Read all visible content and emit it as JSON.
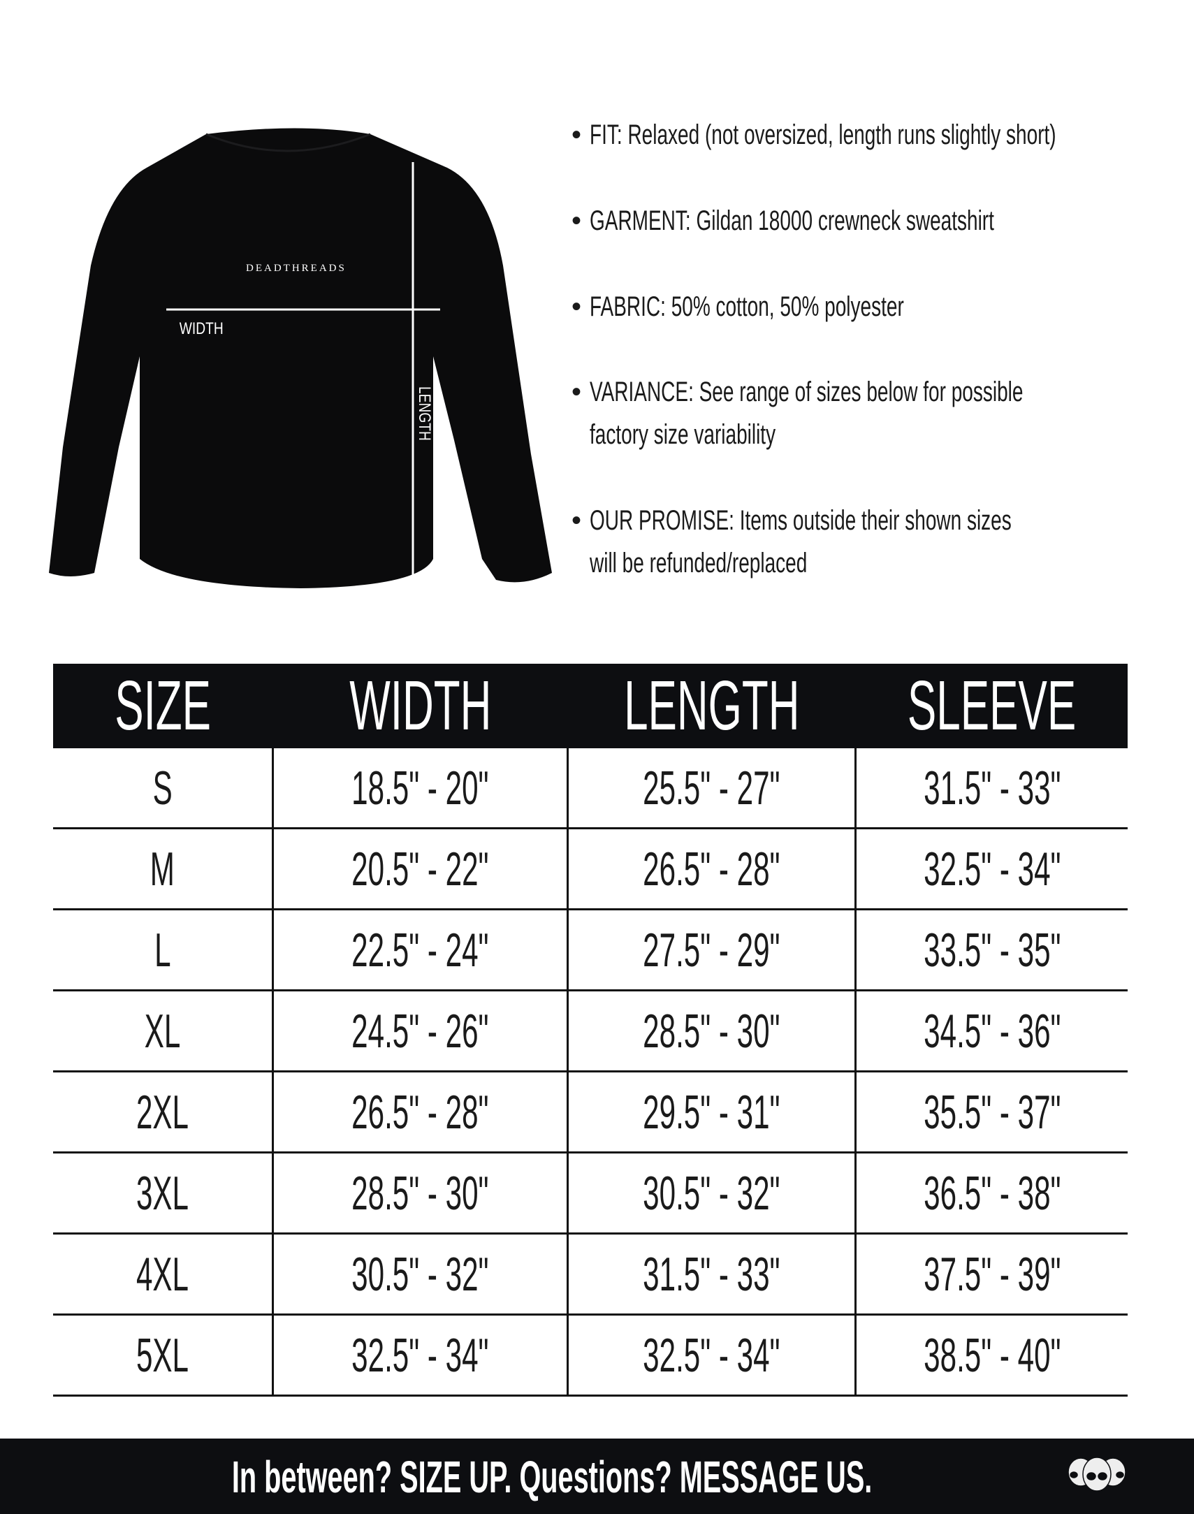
{
  "garment_image": {
    "brand_print": "DEADTHREADS",
    "width_label": "WIDTH",
    "length_label": "LENGTH"
  },
  "bullets": [
    {
      "lines": [
        "FIT: Relaxed (not oversized, length runs slightly short)"
      ]
    },
    {
      "lines": [
        "GARMENT: Gildan 18000 crewneck sweatshirt"
      ]
    },
    {
      "lines": [
        "FABRIC: 50% cotton, 50% polyester"
      ]
    },
    {
      "lines": [
        "VARIANCE: See range of sizes below for possible",
        "factory size variability"
      ]
    },
    {
      "lines": [
        "OUR PROMISE: Items outside their shown sizes",
        "will be refunded/replaced"
      ]
    }
  ],
  "table": {
    "headers": [
      "SIZE",
      "WIDTH",
      "LENGTH",
      "SLEEVE"
    ],
    "rows": [
      [
        "S",
        "18.5\" - 20\"",
        "25.5\" - 27\"",
        "31.5\" - 33\""
      ],
      [
        "M",
        "20.5\" - 22\"",
        "26.5\" - 28\"",
        "32.5\" - 34\""
      ],
      [
        "L",
        "22.5\" - 24\"",
        "27.5\" - 29\"",
        "33.5\" - 35\""
      ],
      [
        "XL",
        "24.5\" - 26\"",
        "28.5\" - 30\"",
        "34.5\" - 36\""
      ],
      [
        "2XL",
        "26.5\" - 28\"",
        "29.5\" - 31\"",
        "35.5\" - 37\""
      ],
      [
        "3XL",
        "28.5\" - 30\"",
        "30.5\" - 32\"",
        "36.5\" - 38\""
      ],
      [
        "4XL",
        "30.5\" - 32\"",
        "31.5\" - 33\"",
        "37.5\" - 39\""
      ],
      [
        "5XL",
        "32.5\" - 34\"",
        "32.5\" - 34\"",
        "38.5\" - 40\""
      ]
    ]
  },
  "footer": {
    "message": "In between? SIZE UP. Questions? MESSAGE US.",
    "logo_icon": "three-skulls-logo"
  },
  "colors": {
    "dark": "#0d0e11",
    "text": "#1a1a1a"
  }
}
